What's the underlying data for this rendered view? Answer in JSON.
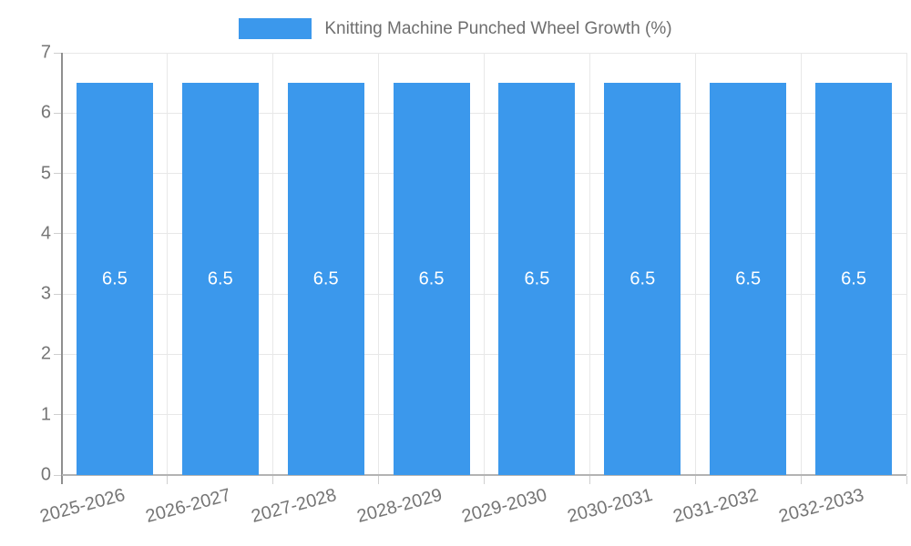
{
  "chart_data": {
    "type": "bar",
    "title": "Knitting Machine Punched Wheel Growth (%)",
    "categories": [
      "2025-2026",
      "2026-2027",
      "2027-2028",
      "2028-2029",
      "2029-2030",
      "2030-2031",
      "2031-2032",
      "2032-2033"
    ],
    "values": [
      6.5,
      6.5,
      6.5,
      6.5,
      6.5,
      6.5,
      6.5,
      6.5
    ],
    "value_labels": [
      "6.5",
      "6.5",
      "6.5",
      "6.5",
      "6.5",
      "6.5",
      "6.5",
      "6.5"
    ],
    "xlabel": "",
    "ylabel": "",
    "ylim": [
      0,
      7
    ],
    "ytick_values": [
      0,
      1,
      2,
      3,
      4,
      5,
      6,
      7
    ],
    "ytick_labels": [
      "0",
      "1",
      "2",
      "3",
      "4",
      "5",
      "6",
      "7"
    ],
    "grid": "on",
    "legend_position": "top",
    "colors": {
      "bar": "#3B98EC",
      "bar_label": "#FFFFFF",
      "axis_text": "#757575",
      "grid_line": "#E8E8E8",
      "axis_line_left": "#8F8F8F",
      "axis_line_bottom": "#B3B3B3",
      "tick_mark": "#CFCFCF",
      "legend_text": "#6E6E6E"
    }
  }
}
